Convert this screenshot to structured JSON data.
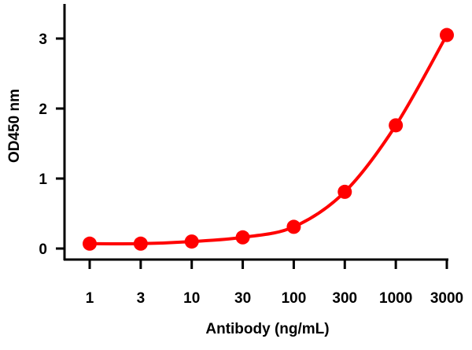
{
  "chart_data": {
    "type": "line",
    "title": "",
    "xlabel": "Antibody (ng/mL)",
    "ylabel": "OD450 nm",
    "x_scale": "log (categorical tick spacing)",
    "categories": [
      "1",
      "3",
      "10",
      "30",
      "100",
      "300",
      "1000",
      "3000"
    ],
    "x": [
      1,
      3,
      10,
      30,
      100,
      300,
      1000,
      3000
    ],
    "yticks": [
      0,
      1,
      2,
      3
    ],
    "ylim": [
      0,
      3.3
    ],
    "grid": false,
    "legend": "none",
    "series": [
      {
        "values": [
          0.07,
          0.07,
          0.1,
          0.16,
          0.31,
          0.81,
          1.76,
          3.05
        ],
        "color": "#ff0000",
        "markers": "filled-circle",
        "curve": "smooth"
      }
    ]
  }
}
